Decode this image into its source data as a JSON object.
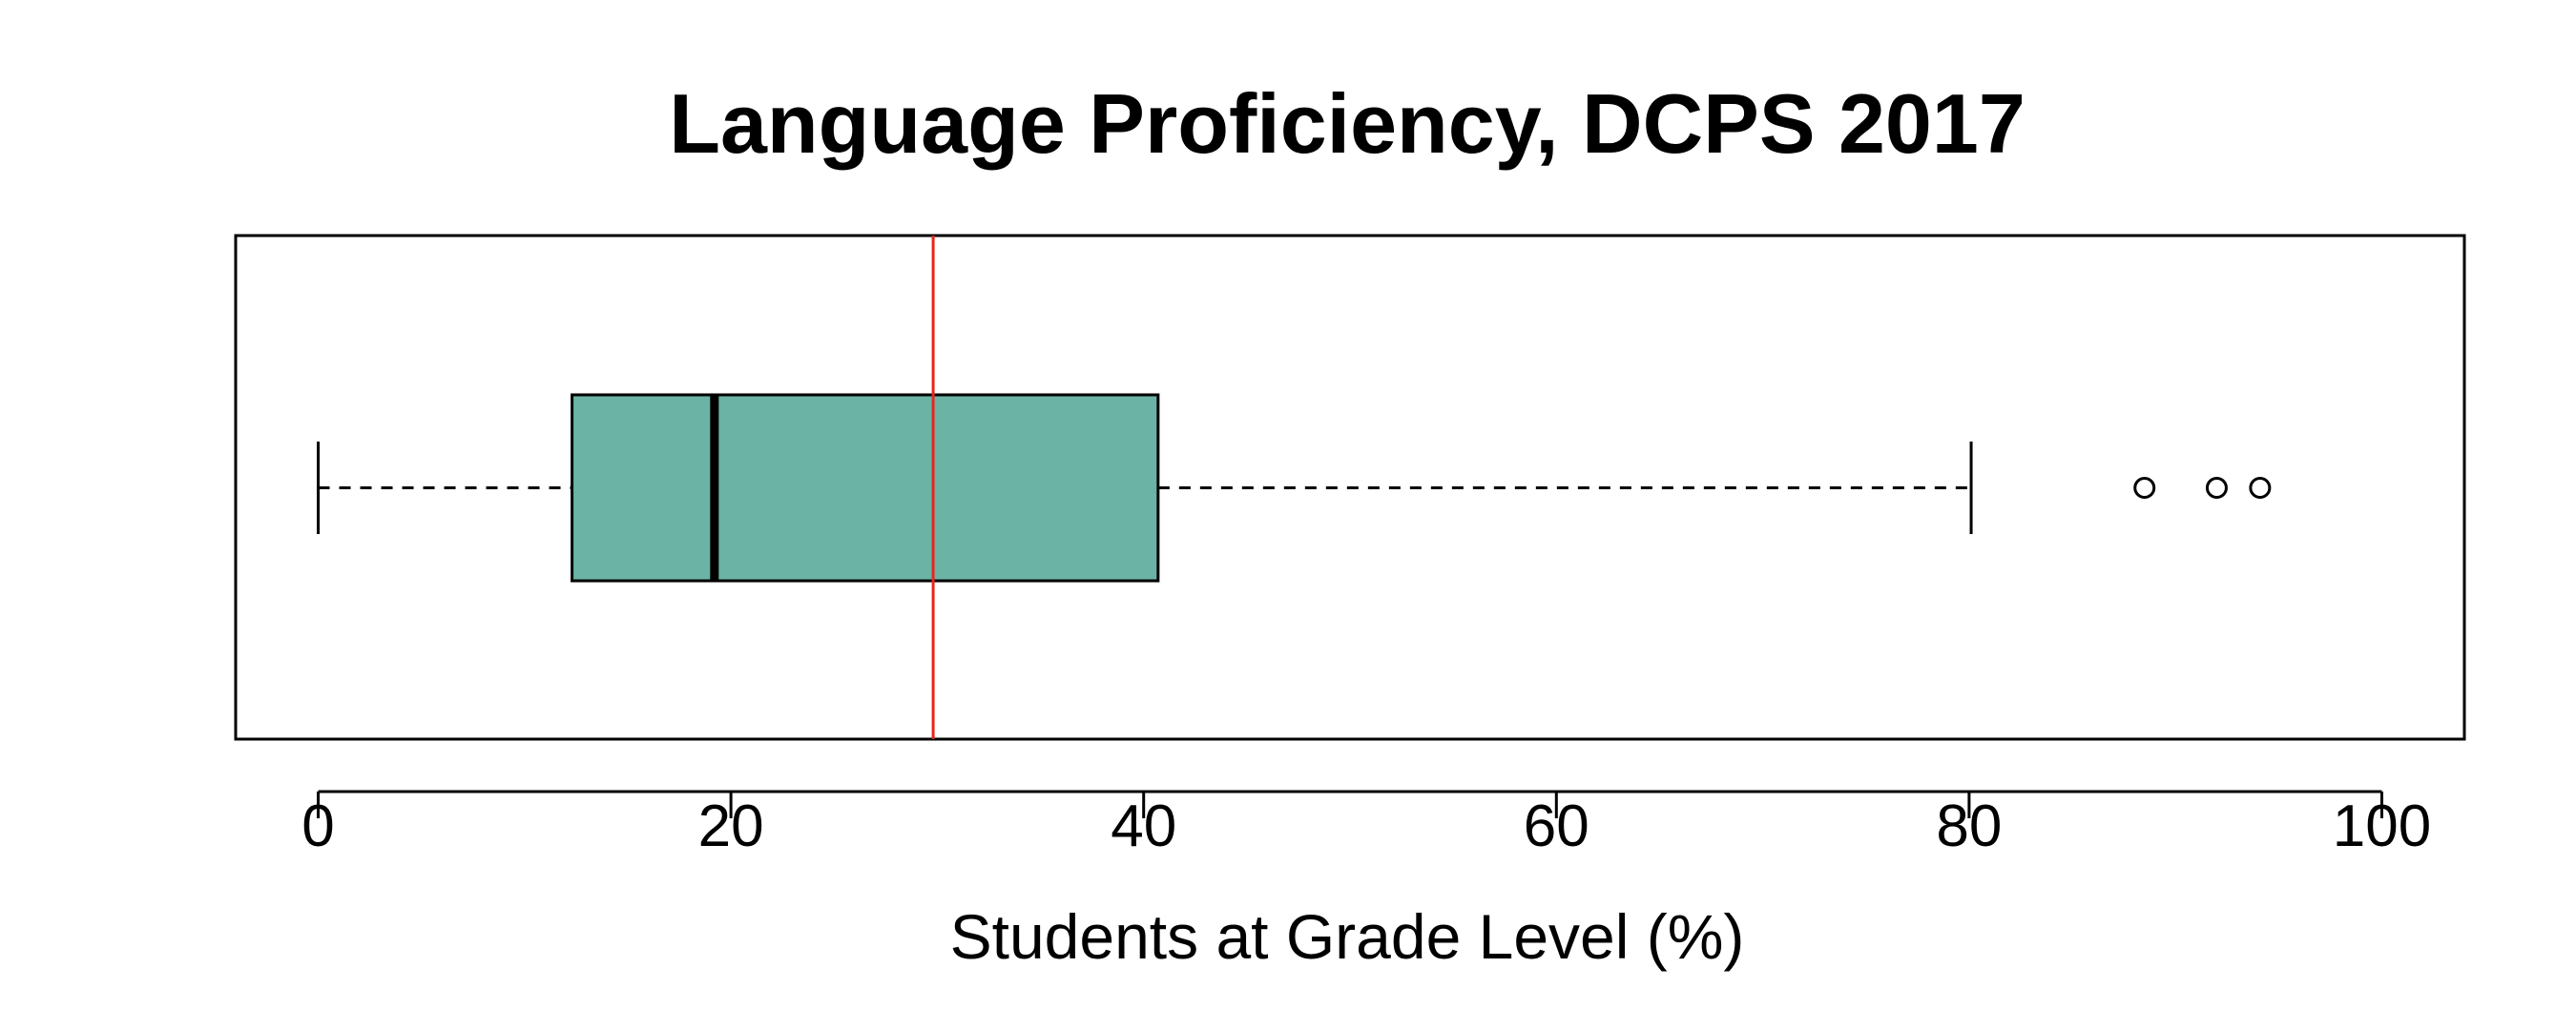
{
  "chart_data": {
    "type": "boxplot",
    "title": "Language Proficiency, DCPS 2017",
    "xlabel": "Students at Grade Level (%)",
    "ylabel": "",
    "xlim": [
      -4,
      104
    ],
    "xticks": [
      0,
      20,
      40,
      60,
      80,
      100
    ],
    "grid": false,
    "orientation": "horizontal",
    "box": {
      "whisker_low": 0,
      "q1": 12.3,
      "median": 19.2,
      "q3": 40.7,
      "whisker_high": 80.1,
      "outliers": [
        88.5,
        92.0,
        94.1
      ],
      "fill_color": "#6bb3a4"
    },
    "reference_line": {
      "value": 29.8,
      "color": "#e8241f"
    }
  }
}
